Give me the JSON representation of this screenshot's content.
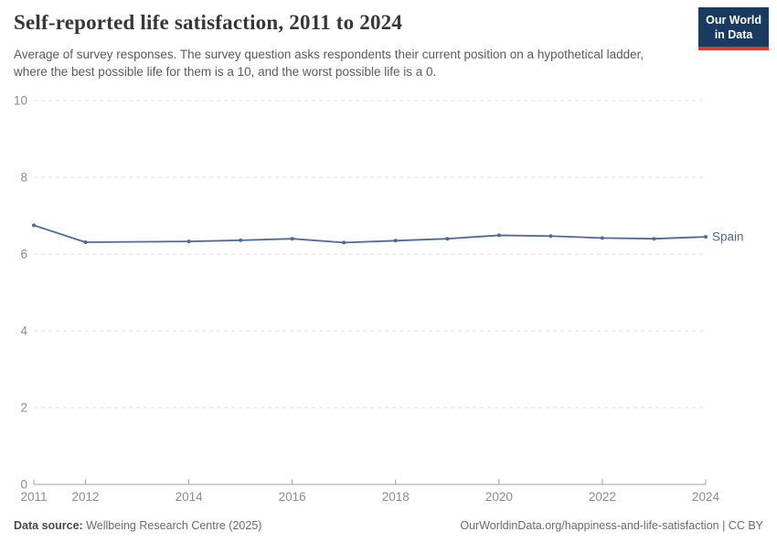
{
  "header": {
    "title": "Self-reported life satisfaction, 2011 to 2024",
    "subtitle": "Average of survey responses. The survey question asks respondents their current position on a hypothetical ladder, where the best possible life for them is a 10, and the worst possible life is a 0."
  },
  "logo": {
    "line1": "Our World",
    "line2": "in Data",
    "bg_color": "#1a3a5f",
    "accent_color": "#d93a34"
  },
  "chart_data": {
    "type": "line",
    "title": "Self-reported life satisfaction, 2011 to 2024",
    "xlabel": "",
    "ylabel": "",
    "x": [
      2011,
      2012,
      2014,
      2015,
      2016,
      2017,
      2018,
      2019,
      2020,
      2021,
      2022,
      2023,
      2024
    ],
    "series": [
      {
        "name": "Spain",
        "color": "#4c6a9c",
        "values": [
          6.75,
          6.31,
          6.33,
          6.36,
          6.4,
          6.3,
          6.35,
          6.4,
          6.49,
          6.47,
          6.42,
          6.4,
          6.45
        ]
      }
    ],
    "xlim": [
      2011,
      2024
    ],
    "ylim": [
      0,
      10
    ],
    "yticks": [
      0,
      2,
      4,
      6,
      8,
      10
    ],
    "xticks": [
      2011,
      2012,
      2014,
      2016,
      2018,
      2020,
      2022,
      2024
    ],
    "grid": true,
    "gridline_color": "#e2e2e2",
    "axis_color": "#a0a0a0",
    "tick_label_color": "#8c8c8c",
    "legend_position": "line-end"
  },
  "footer": {
    "datasource_label": "Data source:",
    "datasource_value": " Wellbeing Research Centre (2025)",
    "credit": "OurWorldinData.org/happiness-and-life-satisfaction | CC BY"
  }
}
